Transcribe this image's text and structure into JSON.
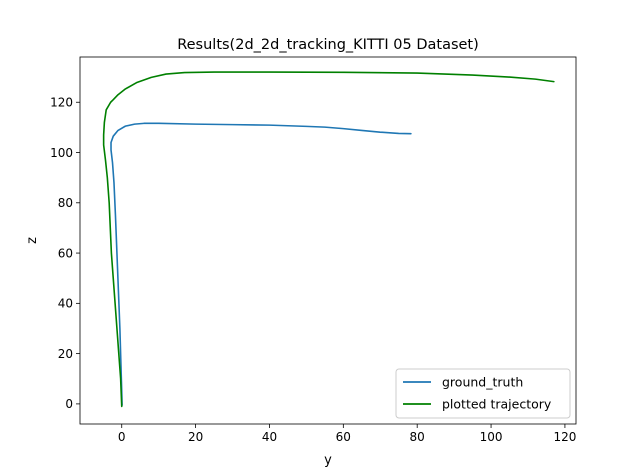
{
  "chart_data": {
    "type": "line",
    "title": "Results(2d_2d_tracking_KITTI 05 Dataset)",
    "xlabel": "y",
    "ylabel": "z",
    "xlim": [
      -11.3,
      123.0
    ],
    "ylim": [
      -8.0,
      138.0
    ],
    "xticks": [
      0,
      20,
      40,
      60,
      80,
      100,
      120
    ],
    "yticks": [
      0,
      20,
      40,
      60,
      80,
      100,
      120
    ],
    "grid": false,
    "legend_position": "lower-right",
    "series": [
      {
        "name": "ground_truth",
        "color": "#1f77b4",
        "points": [
          [
            0.1,
            -0.5
          ],
          [
            0.0,
            5
          ],
          [
            -0.2,
            15
          ],
          [
            -0.5,
            30
          ],
          [
            -0.9,
            45
          ],
          [
            -1.3,
            60
          ],
          [
            -1.7,
            75
          ],
          [
            -2.1,
            88
          ],
          [
            -2.5,
            96
          ],
          [
            -2.9,
            101
          ],
          [
            -2.9,
            104
          ],
          [
            -2.3,
            106.5
          ],
          [
            -1.0,
            108.8
          ],
          [
            1.0,
            110.5
          ],
          [
            3.5,
            111.3
          ],
          [
            6.0,
            111.6
          ],
          [
            10.0,
            111.6
          ],
          [
            20.0,
            111.3
          ],
          [
            30.0,
            111.1
          ],
          [
            40.0,
            110.9
          ],
          [
            50.0,
            110.4
          ],
          [
            55.0,
            110.1
          ],
          [
            60.0,
            109.5
          ],
          [
            65.0,
            108.8
          ],
          [
            70.0,
            108.1
          ],
          [
            75.0,
            107.6
          ],
          [
            78.3,
            107.5
          ]
        ]
      },
      {
        "name": "plotted trajectory",
        "color": "#008000",
        "points": [
          [
            0.0,
            -1.0
          ],
          [
            -0.3,
            10
          ],
          [
            -0.8,
            20
          ],
          [
            -1.3,
            30
          ],
          [
            -1.8,
            40
          ],
          [
            -2.3,
            50
          ],
          [
            -2.8,
            60
          ],
          [
            -3.1,
            70
          ],
          [
            -3.4,
            80
          ],
          [
            -3.9,
            90
          ],
          [
            -4.4,
            97
          ],
          [
            -4.9,
            103
          ],
          [
            -4.9,
            107
          ],
          [
            -4.7,
            112
          ],
          [
            -4.2,
            117
          ],
          [
            -3.0,
            120
          ],
          [
            -2.3,
            121
          ],
          [
            -1.0,
            123
          ],
          [
            1.0,
            125.3
          ],
          [
            4.0,
            127.8
          ],
          [
            8.0,
            129.9
          ],
          [
            12.0,
            131.2
          ],
          [
            17.0,
            131.8
          ],
          [
            25.0,
            132.0
          ],
          [
            40.0,
            132.0
          ],
          [
            60.0,
            131.9
          ],
          [
            80.0,
            131.6
          ],
          [
            95.0,
            130.8
          ],
          [
            105.0,
            130.0
          ],
          [
            112.0,
            129.2
          ],
          [
            117.0,
            128.2
          ]
        ]
      }
    ]
  }
}
